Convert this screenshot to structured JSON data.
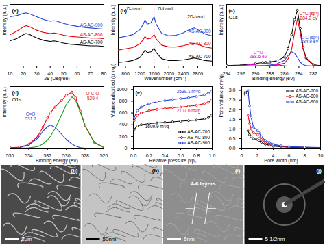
{
  "chart_data": [
    {
      "type": "line",
      "panel": "(a)",
      "xlabel": "2θ (Degree)",
      "ylabel": "Intensity (a.u.)",
      "x": [
        10,
        15,
        20,
        22,
        25,
        30,
        35,
        40,
        43,
        45,
        50,
        55,
        60,
        65,
        70,
        75,
        80
      ],
      "series": [
        {
          "name": "AS-AC-700",
          "color": "#000000",
          "values": [
            4.5,
            4.9,
            5.6,
            5.8,
            5.6,
            5.0,
            4.6,
            4.4,
            4.5,
            4.4,
            4.1,
            3.9,
            3.8,
            3.7,
            3.6,
            3.6,
            3.5
          ]
        },
        {
          "name": "AS-AC-800",
          "color": "#e8000b",
          "values": [
            5.6,
            6.2,
            7.0,
            7.2,
            7.0,
            6.4,
            6.0,
            5.8,
            5.9,
            5.8,
            5.5,
            5.3,
            5.2,
            5.1,
            5.0,
            5.0,
            4.9
          ]
        },
        {
          "name": "AS-AC-900",
          "color": "#1f3fd6",
          "values": [
            8.8,
            9.0,
            9.4,
            9.5,
            9.3,
            8.8,
            8.3,
            8.0,
            8.1,
            8.0,
            7.6,
            7.3,
            7.1,
            6.9,
            6.8,
            6.7,
            6.6
          ]
        }
      ],
      "xlim": [
        10,
        80
      ],
      "xticks": [
        10,
        20,
        30,
        40,
        50,
        60,
        70,
        80
      ],
      "ylim": [
        0,
        11
      ],
      "tick_labels": "x"
    },
    {
      "type": "line",
      "panel": "(b)",
      "xlabel": "Wavenumber (cm⁻¹)",
      "ylabel": "Intensity (a.u.)",
      "x": [
        600,
        800,
        1000,
        1200,
        1300,
        1340,
        1400,
        1500,
        1590,
        1650,
        1800,
        2000,
        2200,
        2400,
        2600,
        2700,
        2800,
        3000,
        3200
      ],
      "series": [
        {
          "name": "AS-AC-700",
          "color": "#000000",
          "values": [
            0.6,
            0.7,
            0.9,
            1.4,
            2.2,
            2.6,
            2.2,
            2.3,
            2.9,
            2.2,
            1.2,
            0.9,
            0.9,
            1.0,
            1.2,
            1.3,
            1.2,
            0.9,
            0.8
          ]
        },
        {
          "name": "AS-AC-800",
          "color": "#e8000b",
          "values": [
            2.6,
            2.8,
            3.0,
            3.6,
            4.4,
            4.8,
            4.4,
            4.5,
            5.1,
            4.4,
            3.4,
            3.1,
            3.1,
            3.3,
            3.6,
            3.7,
            3.5,
            3.1,
            2.9
          ]
        },
        {
          "name": "AS-AC-900",
          "color": "#1f3fd6",
          "values": [
            4.6,
            4.8,
            5.1,
            5.9,
            6.9,
            7.5,
            6.8,
            7.0,
            8.0,
            6.8,
            5.3,
            4.9,
            5.0,
            5.4,
            6.0,
            6.2,
            5.9,
            5.2,
            4.9
          ]
        }
      ],
      "vlines": [
        1340,
        1590
      ],
      "annotations": [
        {
          "text": "D-band",
          "x": 1040,
          "y": 9.3
        },
        {
          "text": "G-band",
          "x": 1900,
          "y": 9.3
        },
        {
          "text": "2D-band",
          "x": 2750,
          "y": 8.0
        }
      ],
      "xlim": [
        600,
        3200
      ],
      "xticks": [
        800,
        1200,
        1600,
        2000,
        2400,
        2800
      ],
      "ylim": [
        0,
        10
      ],
      "tick_labels": "x"
    },
    {
      "type": "line",
      "panel": "(c)",
      "title": "C1s",
      "xlabel": "Binding energy (eV)",
      "ylabel": "Intensity (a.u.)",
      "x": [
        294,
        292,
        290,
        289,
        288.6,
        288,
        287,
        286,
        285.5,
        285,
        284.6,
        284.2,
        283.8,
        283.4,
        283,
        282,
        281
      ],
      "series": [
        {
          "color": "#000000",
          "marker": "circle",
          "values": [
            0.1,
            0.2,
            0.5,
            0.75,
            0.8,
            0.85,
            1.1,
            1.9,
            3.7,
            6.6,
            9.8,
            11.8,
            7.9,
            3.9,
            1.7,
            0.3,
            0.1
          ]
        },
        {
          "color": "#e8000b",
          "values": [
            0,
            0,
            0,
            0,
            0,
            0.05,
            0.2,
            0.6,
            1.5,
            3.5,
            7,
            10,
            7,
            3.5,
            1.5,
            0.2,
            0
          ]
        },
        {
          "color": "#1f3fd6",
          "values": [
            0,
            0,
            0.05,
            0.1,
            0.1,
            0.2,
            0.5,
            1.2,
            2.2,
            3,
            2.7,
            1.8,
            0.8,
            0.3,
            0.1,
            0,
            0
          ]
        },
        {
          "color": "#d400d4",
          "values": [
            0,
            0.1,
            0.35,
            0.55,
            0.6,
            0.5,
            0.25,
            0.05,
            0,
            0,
            0,
            0,
            0,
            0,
            0,
            0,
            0
          ]
        }
      ],
      "annotations": [
        {
          "text": "C=C (sp²)\n284.2 eV",
          "x": 282.6,
          "y": 10.6,
          "color": "#e8000b"
        },
        {
          "text": "C-C (sp³)\n284.9 eV",
          "x": 282.5,
          "y": 5.6,
          "color": "#1f3fd6"
        },
        {
          "text": "C=O\n288.6 eV",
          "x": 289.6,
          "y": 2.4,
          "color": "#d400d4"
        }
      ],
      "xlim": [
        294,
        281
      ],
      "xticks": [
        294,
        292,
        290,
        288,
        286,
        284,
        282
      ],
      "ylim": [
        0,
        13
      ],
      "tick_labels": "x"
    },
    {
      "type": "line",
      "panel": "(d)",
      "title": "O1s",
      "xlabel": "Binding energy (eV)",
      "ylabel": "Intensity (a.u.)",
      "x": [
        536,
        535,
        534,
        533,
        532.5,
        532,
        531.7,
        531.2,
        530.5,
        530,
        529.4,
        529,
        528.5,
        528,
        527,
        526
      ],
      "series": [
        {
          "color": "#e8000b",
          "marker": "circle",
          "values": [
            0.1,
            0.2,
            0.7,
            2.4,
            4.1,
            5.9,
            6.9,
            8.0,
            9.3,
            10.3,
            10.9,
            9.8,
            7.2,
            4.4,
            1.1,
            0.2
          ]
        },
        {
          "color": "#1a9e1a",
          "values": [
            0,
            0,
            0.05,
            0.3,
            0.8,
            1.6,
            2.3,
            3.8,
            6.5,
            8.5,
            10,
            9.3,
            7,
            4.3,
            1,
            0.1
          ]
        },
        {
          "color": "#1f3fd6",
          "values": [
            0,
            0.1,
            0.6,
            2,
            3.3,
            4.2,
            4.5,
            4.1,
            2.7,
            1.7,
            0.8,
            0.4,
            0.1,
            0,
            0,
            0
          ]
        }
      ],
      "annotations": [
        {
          "text": "O-C-O\n529.4",
          "x": 527.2,
          "y": 10.2,
          "color": "#e8000b"
        },
        {
          "text": "C=O\n531.7",
          "x": 533.8,
          "y": 6.2,
          "color": "#1f3fd6"
        }
      ],
      "xlim": [
        536,
        526
      ],
      "xticks": [
        536,
        534,
        532,
        530,
        528,
        526
      ],
      "ylim": [
        0,
        12
      ],
      "tick_labels": "x"
    },
    {
      "type": "line",
      "panel": "(e)",
      "xlabel": "Relative pressure p/p₀",
      "ylabel": "Volume adsorbed (cm³/g)",
      "x": [
        0.01,
        0.05,
        0.1,
        0.2,
        0.3,
        0.4,
        0.5,
        0.6,
        0.7,
        0.8,
        0.9,
        0.95,
        0.99
      ],
      "series": [
        {
          "name": "AS-AC-700",
          "color": "#000000",
          "marker": "circle",
          "values": [
            320,
            380,
            400,
            420,
            430,
            440,
            450,
            460,
            470,
            480,
            500,
            520,
            560
          ]
        },
        {
          "name": "AS-AC-800",
          "color": "#e8000b",
          "marker": "circle",
          "values": [
            470,
            560,
            600,
            640,
            660,
            675,
            690,
            700,
            715,
            730,
            760,
            780,
            820
          ]
        },
        {
          "name": "AS-AC-900",
          "color": "#1f3fd6",
          "marker": "circle",
          "values": [
            520,
            640,
            700,
            760,
            790,
            810,
            830,
            845,
            860,
            880,
            910,
            935,
            970
          ]
        }
      ],
      "annotations": [
        {
          "text": "2539.1 m²/g",
          "x": 0.7,
          "y": 970,
          "color": "#1f3fd6"
        },
        {
          "text": "2107.6 m²/g",
          "x": 0.7,
          "y": 640,
          "color": "#e8000b"
        },
        {
          "text": "1609.9 m²/g",
          "x": 0.3,
          "y": 365,
          "color": "#000000"
        }
      ],
      "legend": "bottom-right",
      "xlim": [
        0,
        1
      ],
      "xticks": [
        {
          "value": 0,
          "label": "0.0"
        },
        {
          "value": 0.2,
          "label": "0.2"
        },
        {
          "value": 0.4,
          "label": "0.4"
        },
        {
          "value": 0.6,
          "label": "0.6"
        },
        {
          "value": 0.8,
          "label": "0.8"
        },
        {
          "value": 1,
          "label": "1.0"
        }
      ],
      "ylim": [
        0,
        1050
      ],
      "yticks": [
        0,
        200,
        400,
        600,
        800,
        1000
      ]
    },
    {
      "type": "line",
      "panel": "(f)",
      "xlabel": "Pore width (nm)",
      "ylabel": "Pore volume (cm³/g)",
      "x": [
        0.8,
        1,
        1.2,
        1.5,
        2,
        2.2,
        2.5,
        3,
        3.5,
        4,
        5,
        6,
        8,
        10
      ],
      "series": [
        {
          "name": "AS-AC-700",
          "color": "#000000",
          "marker": "circle",
          "values": [
            0.9,
            0.7,
            0.6,
            0.5,
            0.45,
            0.4,
            0.3,
            0.2,
            0.15,
            0.1,
            0.07,
            0.05,
            0.03,
            0.02
          ]
        },
        {
          "name": "AS-AC-800",
          "color": "#e8000b",
          "marker": "circle",
          "values": [
            1.7,
            1.3,
            1.0,
            0.8,
            0.7,
            0.6,
            0.45,
            0.3,
            0.22,
            0.15,
            0.1,
            0.06,
            0.04,
            0.02
          ]
        },
        {
          "name": "AS-AC-900",
          "color": "#1f3fd6",
          "marker": "circle",
          "values": [
            3.0,
            2.2,
            1.6,
            1.1,
            0.9,
            0.8,
            0.6,
            0.4,
            0.3,
            0.2,
            0.12,
            0.08,
            0.05,
            0.03
          ]
        }
      ],
      "legend": "top-right",
      "xlim": [
        0,
        10
      ],
      "xticks": [
        0,
        2,
        4,
        6,
        8,
        10
      ],
      "ylim": [
        0,
        3.2
      ],
      "yticks": [
        {
          "value": 0,
          "label": "0.0"
        },
        {
          "value": 0.5,
          "label": "0.5"
        },
        {
          "value": 1,
          "label": "1.0"
        },
        {
          "value": 1.5,
          "label": "1.5"
        },
        {
          "value": 2,
          "label": "2.0"
        },
        {
          "value": 2.5,
          "label": "2.5"
        },
        {
          "value": 3,
          "label": "3.0"
        }
      ]
    }
  ],
  "images": [
    {
      "panel": "(g)",
      "scale_bar": "2μm"
    },
    {
      "panel": "(h)",
      "scale_bar": "50nm"
    },
    {
      "panel": "(i)",
      "scale_bar": "5nm",
      "annotation": "4-6 layers"
    },
    {
      "panel": "(j)",
      "scale_bar": "5 1/2nm"
    }
  ]
}
